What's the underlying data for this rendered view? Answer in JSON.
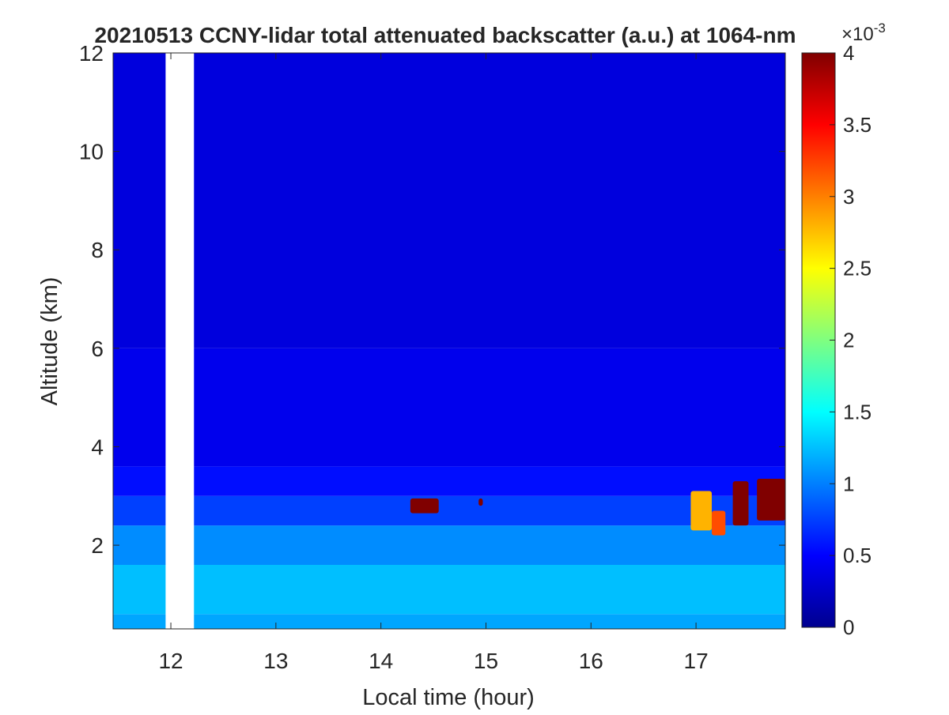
{
  "chart_data": {
    "type": "heatmap",
    "title": "20210513 CCNY-lidar total attenuated backscatter (a.u.) at 1064-nm",
    "xlabel": "Local time (hour)",
    "ylabel": "Altitude (km)",
    "xlim": [
      11.45,
      17.85
    ],
    "ylim": [
      0.3,
      12
    ],
    "x_ticks": [
      12,
      13,
      14,
      15,
      16,
      17
    ],
    "x_tick_labels": [
      "12",
      "13",
      "14",
      "15",
      "16",
      "17"
    ],
    "y_ticks": [
      2,
      4,
      6,
      8,
      10,
      12
    ],
    "y_tick_labels": [
      "2",
      "4",
      "6",
      "8",
      "10",
      "12"
    ],
    "colorbar": {
      "colormap": "jet",
      "clim": [
        0,
        0.004
      ],
      "ticks": [
        0,
        0.0005,
        0.001,
        0.0015,
        0.002,
        0.0025,
        0.003,
        0.0035,
        0.004
      ],
      "tick_labels": [
        "0",
        "0.5",
        "1",
        "1.5",
        "2",
        "2.5",
        "3",
        "3.5",
        "4"
      ],
      "exponent_label": "×10",
      "exponent_power": "-3"
    },
    "data_gaps": [
      {
        "x_start": 11.95,
        "x_end": 12.22
      }
    ],
    "layers": [
      {
        "y_bottom": 0.3,
        "y_top": 0.6,
        "value_e3": 1.15
      },
      {
        "y_bottom": 0.6,
        "y_top": 1.6,
        "value_e3": 1.25
      },
      {
        "y_bottom": 1.6,
        "y_top": 2.4,
        "value_e3": 1.05
      },
      {
        "y_bottom": 2.4,
        "y_top": 3.0,
        "value_e3": 0.75
      },
      {
        "y_bottom": 3.0,
        "y_top": 3.6,
        "value_e3": 0.55
      },
      {
        "y_bottom": 3.6,
        "y_top": 6.0,
        "value_e3": 0.42
      },
      {
        "y_bottom": 6.0,
        "y_top": 12.0,
        "value_e3": 0.35
      }
    ],
    "strong_features": [
      {
        "x_start": 14.28,
        "x_end": 14.55,
        "y_bottom": 2.65,
        "y_top": 2.95,
        "value_e3": 4
      },
      {
        "x_start": 14.93,
        "x_end": 14.97,
        "y_bottom": 2.8,
        "y_top": 2.95,
        "value_e3": 4
      },
      {
        "x_start": 16.95,
        "x_end": 17.15,
        "y_bottom": 2.3,
        "y_top": 3.1,
        "value_e3": 2.8
      },
      {
        "x_start": 17.15,
        "x_end": 17.28,
        "y_bottom": 2.2,
        "y_top": 2.7,
        "value_e3": 3.2
      },
      {
        "x_start": 17.35,
        "x_end": 17.5,
        "y_bottom": 2.4,
        "y_top": 3.3,
        "value_e3": 4
      },
      {
        "x_start": 17.58,
        "x_end": 17.85,
        "y_bottom": 2.5,
        "y_top": 3.35,
        "value_e3": 4
      }
    ]
  }
}
